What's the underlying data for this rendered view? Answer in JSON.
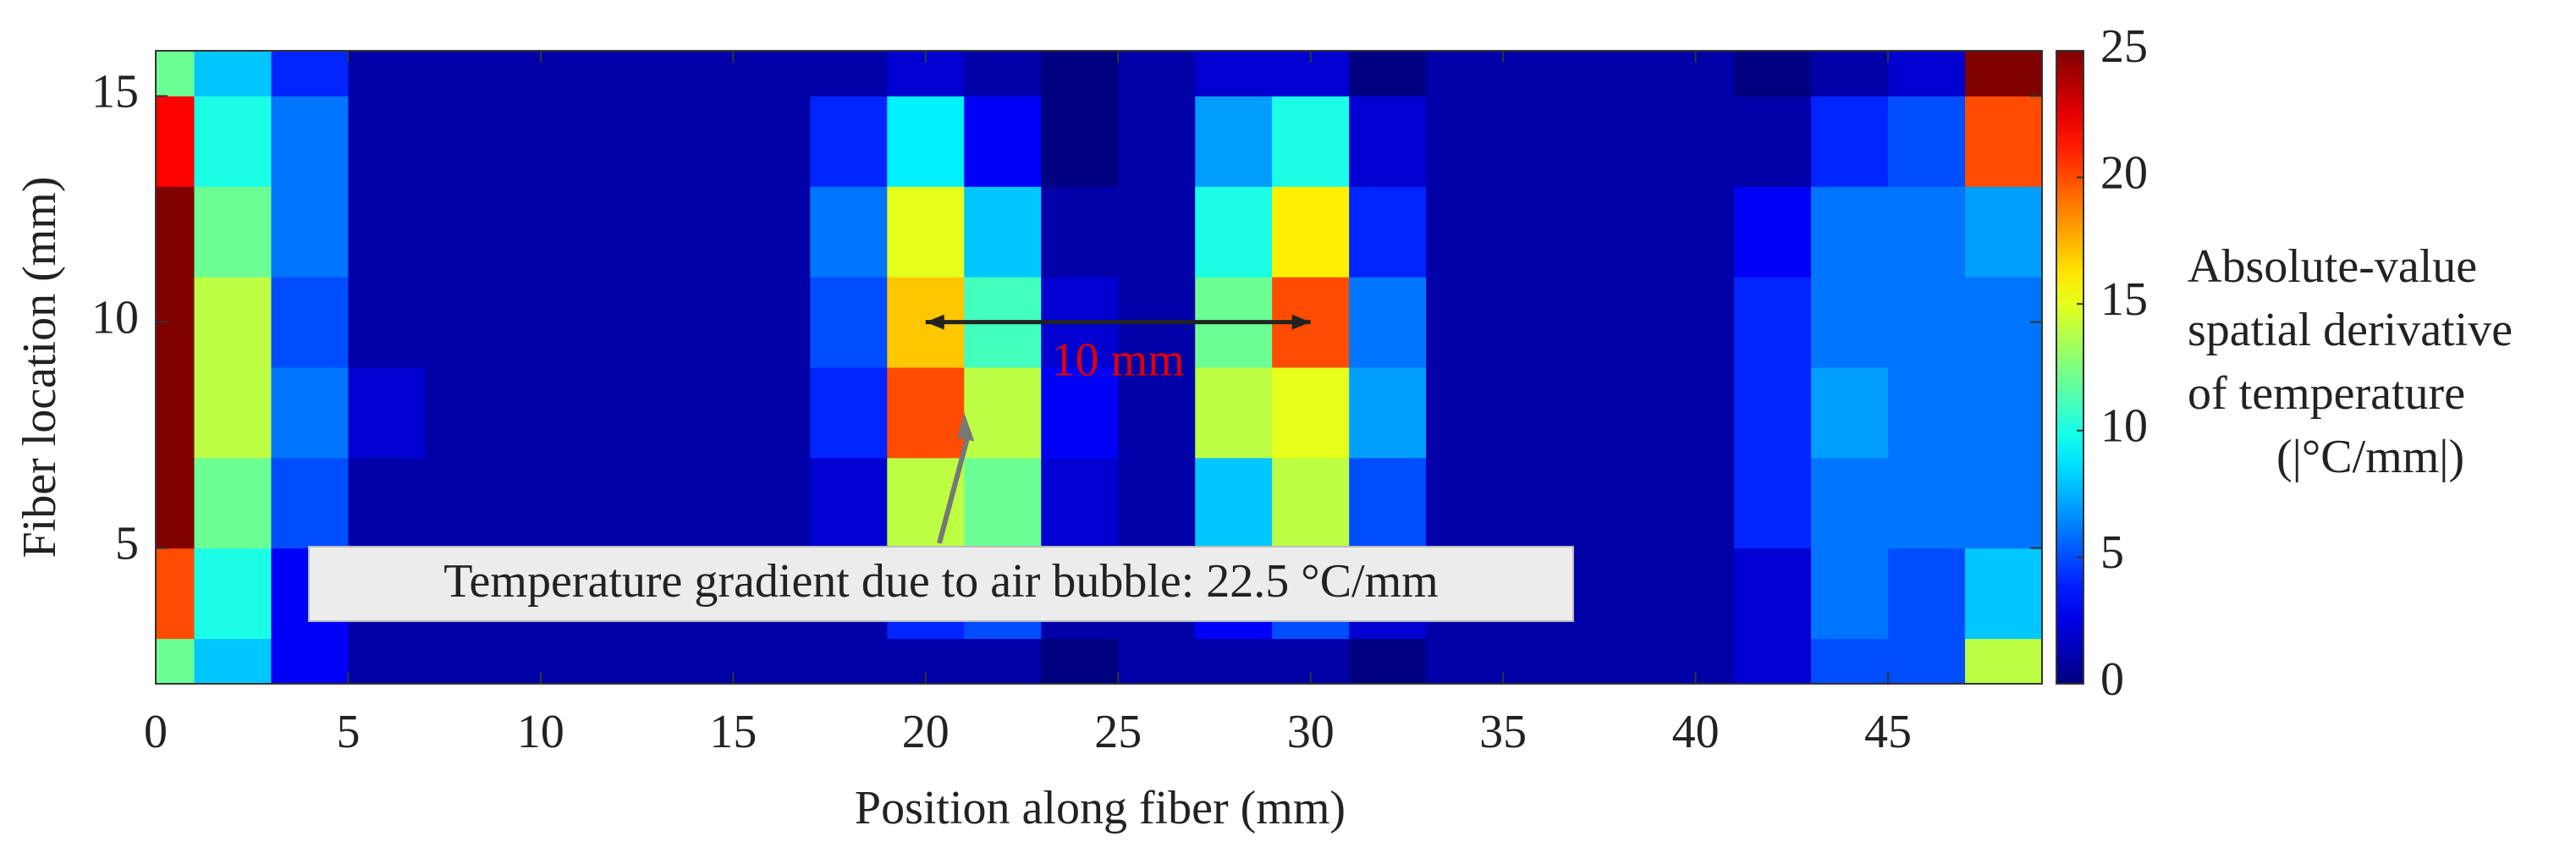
{
  "chart_data": {
    "type": "contour",
    "xlabel": "Position along fiber (mm)",
    "ylabel": "Fiber location (mm)",
    "x": [
      0,
      2,
      4,
      6,
      8,
      10,
      12,
      14,
      16,
      18,
      20,
      22,
      24,
      26,
      28,
      30,
      32,
      34,
      36,
      38,
      40,
      42,
      44,
      46,
      48
    ],
    "y": [
      2,
      4,
      6,
      8,
      10,
      12,
      14,
      16
    ],
    "z": [
      [
        12,
        8,
        3,
        1,
        1,
        1,
        1,
        1,
        1,
        1,
        1,
        1,
        0,
        1,
        1,
        1,
        0,
        1,
        1,
        1,
        1,
        2,
        5,
        5,
        14
      ],
      [
        20,
        10,
        3,
        1,
        1,
        1,
        1,
        1,
        1,
        1,
        4,
        5,
        1,
        1,
        3,
        5,
        2,
        1,
        1,
        1,
        1,
        2,
        6,
        5,
        8
      ],
      [
        25,
        12,
        5,
        1,
        1,
        1,
        1,
        1,
        1,
        2,
        14,
        12,
        2,
        1,
        8,
        14,
        5,
        1,
        1,
        1,
        1,
        4,
        6,
        6,
        6
      ],
      [
        25,
        14,
        6,
        2,
        1,
        1,
        1,
        1,
        1,
        4,
        20,
        14,
        3,
        1,
        14,
        15,
        7,
        1,
        1,
        1,
        1,
        4,
        7,
        6,
        6
      ],
      [
        25,
        14,
        5,
        1,
        1,
        1,
        1,
        1,
        1,
        5,
        17,
        11,
        2,
        1,
        12,
        20,
        6,
        1,
        1,
        1,
        1,
        4,
        6,
        6,
        6
      ],
      [
        25,
        12,
        6,
        1,
        1,
        1,
        1,
        1,
        1,
        6,
        15,
        8,
        1,
        1,
        10,
        16,
        4,
        1,
        1,
        1,
        1,
        3,
        6,
        6,
        7
      ],
      [
        22,
        10,
        6,
        1,
        1,
        1,
        1,
        1,
        1,
        4,
        9,
        3,
        0,
        1,
        7,
        10,
        2,
        1,
        1,
        1,
        1,
        1,
        4,
        5,
        20
      ],
      [
        12,
        8,
        4,
        1,
        1,
        1,
        1,
        1,
        1,
        1,
        2,
        1,
        0,
        1,
        2,
        2,
        0,
        1,
        1,
        1,
        1,
        0,
        1,
        2,
        25
      ]
    ],
    "colormap": "jet",
    "xlim": [
      0,
      49
    ],
    "xticks": [
      0,
      5,
      10,
      15,
      20,
      25,
      30,
      35,
      40,
      45
    ],
    "ylim": [
      2,
      16
    ],
    "yticks": [
      5,
      10,
      15
    ],
    "colorbar": {
      "label": [
        "Absolute-value",
        "spatial derivative",
        "of temperature",
        "(|°C/mm|)"
      ],
      "lim": [
        0,
        25
      ],
      "ticks": [
        0,
        5,
        10,
        15,
        20,
        25
      ]
    },
    "measure": {
      "from": 20,
      "to": 30,
      "y": 10,
      "label": "10 mm"
    },
    "callout": {
      "text": "Temperature gradient due to air bubble: 22.5 °C/mm",
      "x": 21,
      "y": 8
    }
  }
}
